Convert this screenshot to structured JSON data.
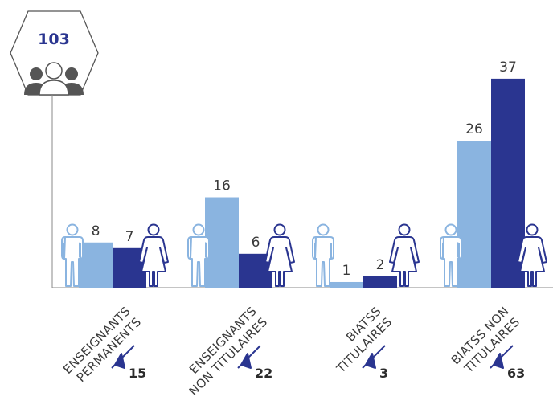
{
  "header_total": "103",
  "colors": {
    "men": "#8ab4e0",
    "women": "#2a3590",
    "text": "#3a3a3a",
    "axis": "#888888"
  },
  "icons": {
    "group": "group-people-icon",
    "man": "man-icon",
    "woman": "woman-icon",
    "total": "triangle-marker-icon"
  },
  "chart_data": {
    "type": "bar",
    "title": "",
    "xlabel": "",
    "ylabel": "",
    "categories": [
      "ENSEIGNANTS PERMANENTS",
      "ENSEIGNANTS NON TITULAIRES",
      "BIATSS TITULAIRES",
      "BIATSS NON TITULAIRES"
    ],
    "category_lines": [
      [
        "ENSEIGNANTS",
        "PERMANENTS"
      ],
      [
        "ENSEIGNANTS",
        "NON TITULAIRES"
      ],
      [
        "BIATSS",
        "TITULAIRES"
      ],
      [
        "BIATSS NON",
        "TITULAIRES"
      ]
    ],
    "series": [
      {
        "values": [
          8,
          16,
          1,
          26
        ]
      },
      {
        "values": [
          7,
          6,
          2,
          37
        ]
      }
    ],
    "totals": [
      "15",
      "22",
      "3",
      "63"
    ],
    "ylim": [
      0,
      37
    ],
    "grid": false,
    "legend": "none"
  }
}
